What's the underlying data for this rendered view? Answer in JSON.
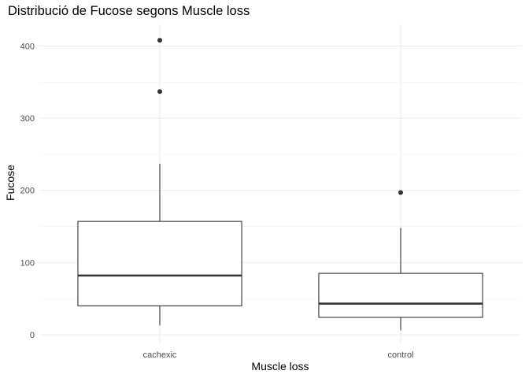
{
  "chart_data": {
    "type": "boxplot",
    "title": "Distribució de Fucose segons Muscle loss",
    "xlabel": "Muscle loss",
    "ylabel": "Fucose",
    "ylim": [
      -12,
      430
    ],
    "y_ticks": [
      0,
      100,
      200,
      300,
      400
    ],
    "grid": true,
    "categories": [
      "cachexic",
      "control"
    ],
    "boxes": [
      {
        "name": "cachexic",
        "whisker_low": 13,
        "q1": 40,
        "median": 82,
        "q3": 157,
        "whisker_high": 237,
        "outliers": [
          337,
          408
        ]
      },
      {
        "name": "control",
        "whisker_low": 6,
        "q1": 24,
        "median": 43,
        "q3": 85,
        "whisker_high": 148,
        "outliers": [
          197
        ]
      }
    ]
  }
}
